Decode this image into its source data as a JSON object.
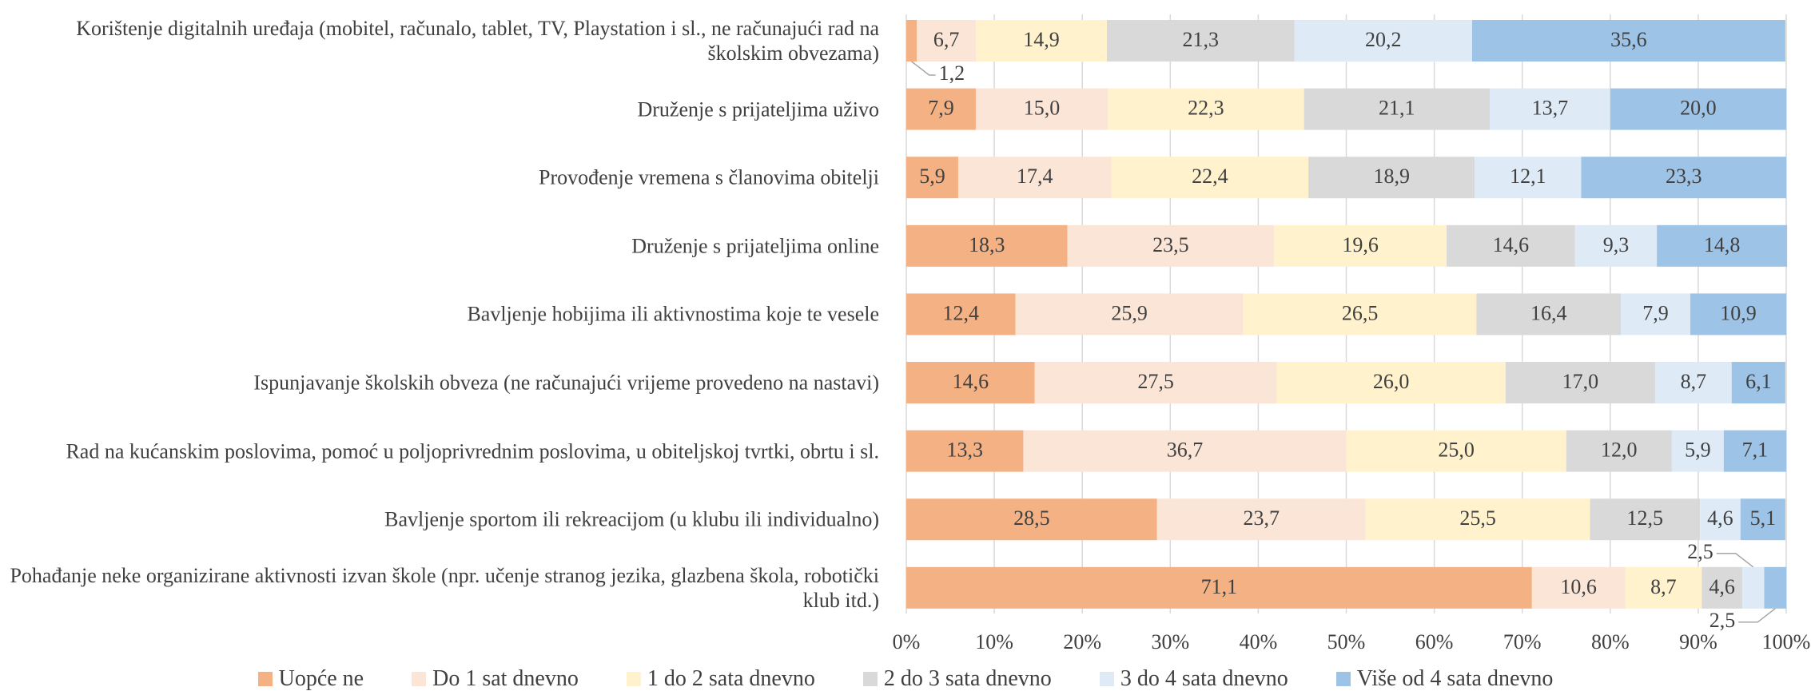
{
  "chart_data": {
    "type": "stacked-barh",
    "categories": [
      "Korištenje digitalnih uređaja (mobitel, računalo, tablet, TV, Playstation i sl., ne računajući rad na školskim obvezama)",
      "Druženje s prijateljima uživo",
      "Provođenje vremena s članovima obitelji",
      "Druženje s prijateljima online",
      "Bavljenje hobijima ili aktivnostima koje te vesele",
      "Ispunjavanje školskih obveza (ne računajući vrijeme provedeno na nastavi)",
      "Rad na kućanskim poslovima, pomoć u poljoprivrednim poslovima, u obiteljskoj tvrtki, obrtu i sl.",
      "Bavljenje sportom ili rekreacijom (u klubu ili individualno)",
      "Pohađanje neke organizirane aktivnosti izvan škole (npr. učenje stranog jezika, glazbena škola, robotički klub itd.)"
    ],
    "series": [
      {
        "name": "Uopće ne",
        "color": "#f4b183",
        "values": [
          1.2,
          7.9,
          5.9,
          18.3,
          12.4,
          14.6,
          13.3,
          28.5,
          71.1
        ],
        "value_labels": [
          "1,2",
          "7,9",
          "5,9",
          "18,3",
          "12,4",
          "14,6",
          "13,3",
          "28,5",
          "71,1"
        ]
      },
      {
        "name": "Do 1 sat dnevno",
        "color": "#fbe5d6",
        "values": [
          6.7,
          15.0,
          17.4,
          23.5,
          25.9,
          27.5,
          36.7,
          23.7,
          10.6
        ],
        "value_labels": [
          "6,7",
          "15,0",
          "17,4",
          "23,5",
          "25,9",
          "27,5",
          "36,7",
          "23,7",
          "10,6"
        ]
      },
      {
        "name": "1 do 2 sata dnevno",
        "color": "#fff2cc",
        "values": [
          14.9,
          22.3,
          22.4,
          19.6,
          26.5,
          26.0,
          25.0,
          25.5,
          8.7
        ],
        "value_labels": [
          "14,9",
          "22,3",
          "22,4",
          "19,6",
          "26,5",
          "26,0",
          "25,0",
          "25,5",
          "8,7"
        ]
      },
      {
        "name": "2 do 3 sata dnevno",
        "color": "#d9d9d9",
        "values": [
          21.3,
          21.1,
          18.9,
          14.6,
          16.4,
          17.0,
          12.0,
          12.5,
          4.6
        ],
        "value_labels": [
          "21,3",
          "21,1",
          "18,9",
          "14,6",
          "16,4",
          "17,0",
          "12,0",
          "12,5",
          "4,6"
        ]
      },
      {
        "name": "3 do 4 sata dnevno",
        "color": "#deebf7",
        "values": [
          20.2,
          13.7,
          12.1,
          9.3,
          7.9,
          8.7,
          5.9,
          4.6,
          2.5
        ],
        "value_labels": [
          "20,2",
          "13,7",
          "12,1",
          "9,3",
          "7,9",
          "8,7",
          "5,9",
          "4,6",
          "2,5"
        ]
      },
      {
        "name": "Više od 4 sata dnevno",
        "color": "#9dc3e6",
        "values": [
          35.6,
          20.0,
          23.3,
          14.8,
          10.9,
          6.1,
          7.1,
          5.1,
          2.5
        ],
        "value_labels": [
          "35,6",
          "20,0",
          "23,3",
          "14,8",
          "10,9",
          "6,1",
          "7,1",
          "5,1",
          "2,5"
        ]
      }
    ],
    "xlim": [
      0,
      100
    ],
    "xticks": [
      {
        "value": 0,
        "label": "0%"
      },
      {
        "value": 10,
        "label": "10%"
      },
      {
        "value": 20,
        "label": "20%"
      },
      {
        "value": 30,
        "label": "30%"
      },
      {
        "value": 40,
        "label": "40%"
      },
      {
        "value": 50,
        "label": "50%"
      },
      {
        "value": 60,
        "label": "60%"
      },
      {
        "value": 70,
        "label": "70%"
      },
      {
        "value": 80,
        "label": "80%"
      },
      {
        "value": 90,
        "label": "90%"
      },
      {
        "value": 100,
        "label": "100%"
      }
    ],
    "grid": true,
    "legend": "bottom"
  }
}
